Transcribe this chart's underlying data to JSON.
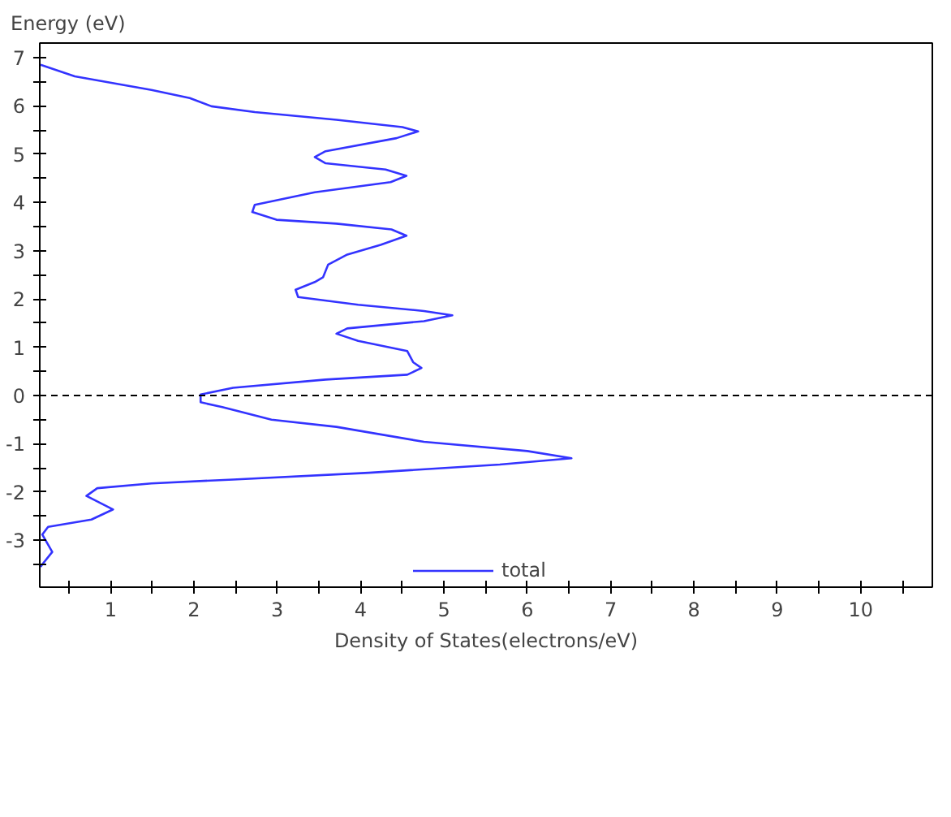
{
  "chart_data": {
    "type": "line",
    "xlabel": "Density of States(electrons/eV)",
    "ylabel": "Energy (eV)",
    "xlim": [
      0.15,
      10.86
    ],
    "ylim": [
      -3.97,
      7.3
    ],
    "xticks": [
      {
        "value": 0.5,
        "label": null
      },
      1,
      {
        "value": 1.5,
        "label": null
      },
      2,
      {
        "value": 2.5,
        "label": null
      },
      3,
      {
        "value": 3.5,
        "label": null
      },
      4,
      {
        "value": 4.5,
        "label": null
      },
      5,
      {
        "value": 5.5,
        "label": null
      },
      6,
      {
        "value": 6.5,
        "label": null
      },
      7,
      {
        "value": 7.5,
        "label": null
      },
      8,
      {
        "value": 8.5,
        "label": null
      },
      9,
      {
        "value": 9.5,
        "label": null
      },
      10,
      {
        "value": 10.5,
        "label": null
      }
    ],
    "yticks": [
      {
        "value": -3.5,
        "label": null
      },
      -3,
      {
        "value": -2.5,
        "label": null
      },
      -2,
      {
        "value": -1.5,
        "label": null
      },
      -1,
      {
        "value": -0.5,
        "label": null
      },
      0,
      {
        "value": 0.5,
        "label": null
      },
      1,
      {
        "value": 1.5,
        "label": null
      },
      2,
      {
        "value": 2.5,
        "label": null
      },
      3,
      {
        "value": 3.5,
        "label": null
      },
      4,
      {
        "value": 4.5,
        "label": null
      },
      5,
      {
        "value": 5.5,
        "label": null
      },
      6,
      {
        "value": 6.5,
        "label": null
      },
      7
    ],
    "grid": false,
    "legend": "bottom",
    "ref_lines": [
      {
        "axis": "y",
        "value": 0,
        "color": "#000000",
        "line_style": "dashed"
      }
    ],
    "series": [
      {
        "name": "total",
        "color": "#3333ff",
        "x": [
          0.16,
          0.57,
          1.49,
          1.95,
          2.21,
          2.73,
          3.71,
          4.5,
          4.69,
          4.43,
          3.58,
          3.45,
          3.58,
          4.3,
          4.55,
          4.36,
          3.45,
          2.73,
          2.7,
          2.99,
          3.71,
          4.37,
          4.55,
          4.24,
          3.84,
          3.61,
          3.55,
          3.45,
          3.22,
          3.25,
          3.97,
          4.76,
          5.1,
          4.76,
          3.84,
          3.71,
          3.97,
          4.56,
          4.63,
          4.73,
          4.56,
          3.58,
          2.47,
          2.08,
          2.08,
          2.34,
          2.93,
          3.71,
          4.76,
          6.0,
          6.53,
          5.67,
          4.1,
          2.47,
          1.49,
          0.84,
          0.71,
          1.03,
          0.77,
          0.25,
          0.18,
          0.3,
          0.18,
          0.16
        ],
        "values": [
          6.85,
          6.61,
          6.33,
          6.16,
          5.99,
          5.87,
          5.71,
          5.56,
          5.47,
          5.33,
          5.06,
          4.94,
          4.81,
          4.68,
          4.55,
          4.42,
          4.21,
          3.95,
          3.8,
          3.64,
          3.56,
          3.44,
          3.31,
          3.12,
          2.92,
          2.71,
          2.45,
          2.35,
          2.19,
          2.04,
          1.88,
          1.75,
          1.66,
          1.54,
          1.39,
          1.28,
          1.13,
          0.92,
          0.69,
          0.57,
          0.43,
          0.33,
          0.16,
          0.02,
          -0.14,
          -0.24,
          -0.5,
          -0.65,
          -0.96,
          -1.15,
          -1.3,
          -1.43,
          -1.6,
          -1.74,
          -1.82,
          -1.92,
          -2.08,
          -2.36,
          -2.57,
          -2.72,
          -2.88,
          -3.24,
          -3.5,
          -3.55
        ]
      }
    ]
  }
}
